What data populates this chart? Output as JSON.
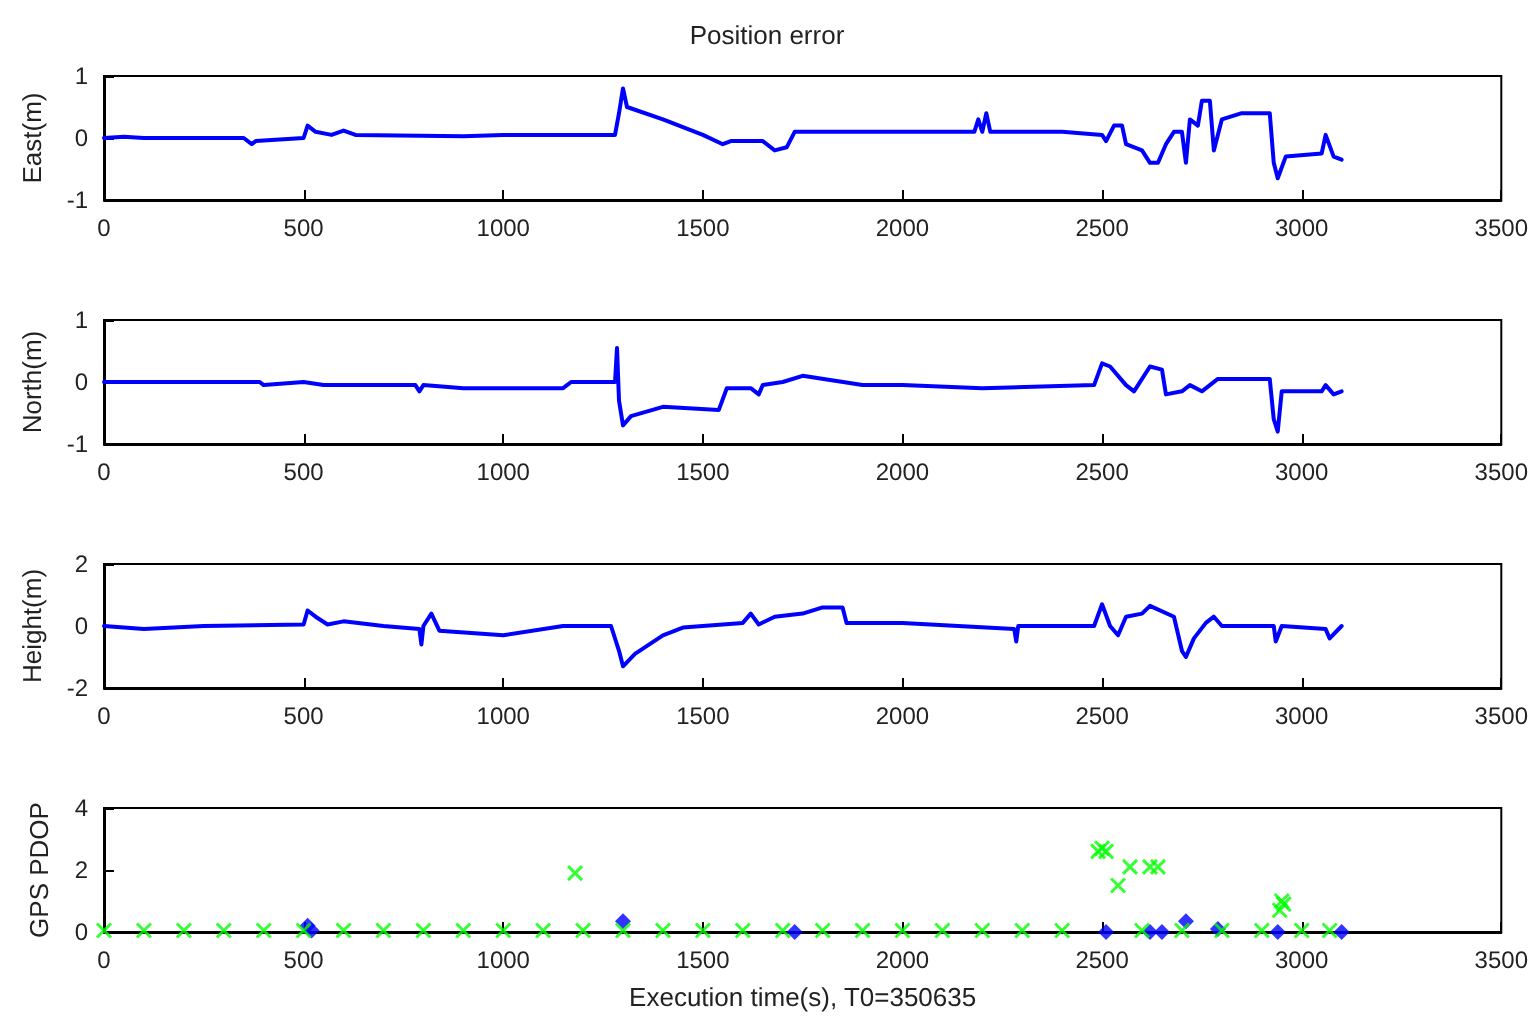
{
  "chart_data": [
    {
      "type": "line",
      "title": "Position error",
      "ylabel": "East(m)",
      "xlim": [
        0,
        3500
      ],
      "xticks": [
        0,
        500,
        1000,
        1500,
        2000,
        2500,
        3000,
        3500
      ],
      "ylim": [
        -1,
        1
      ],
      "yticks": [
        -1,
        0,
        1
      ],
      "grid": false,
      "marker": "none",
      "line_style": "solid",
      "series": [
        {
          "color": "#0000ff",
          "x": [
            0,
            50,
            100,
            350,
            370,
            380,
            500,
            510,
            530,
            570,
            600,
            630,
            900,
            1000,
            1280,
            1290,
            1300,
            1310,
            1400,
            1500,
            1550,
            1570,
            1650,
            1680,
            1710,
            1730,
            1800,
            2000,
            2180,
            2190,
            2200,
            2210,
            2220,
            2400,
            2500,
            2510,
            2530,
            2550,
            2560,
            2600,
            2620,
            2640,
            2660,
            2680,
            2700,
            2710,
            2720,
            2740,
            2750,
            2770,
            2780,
            2800,
            2850,
            2920,
            2930,
            2940,
            2960,
            3050,
            3060,
            3080,
            3100
          ],
          "values": [
            0,
            0.02,
            0,
            0,
            -0.1,
            -0.05,
            0,
            0.2,
            0.1,
            0.05,
            0.12,
            0.05,
            0.03,
            0.05,
            0.05,
            0.4,
            0.8,
            0.5,
            0.3,
            0.05,
            -0.1,
            -0.05,
            -0.05,
            -0.2,
            -0.15,
            0.1,
            0.1,
            0.1,
            0.1,
            0.3,
            0.1,
            0.4,
            0.1,
            0.1,
            0.05,
            -0.05,
            0.2,
            0.2,
            -0.1,
            -0.2,
            -0.4,
            -0.4,
            -0.1,
            0.1,
            0.1,
            -0.4,
            0.3,
            0.2,
            0.6,
            0.6,
            -0.2,
            0.3,
            0.4,
            0.4,
            -0.4,
            -0.65,
            -0.3,
            -0.25,
            0.05,
            -0.3,
            -0.35
          ]
        }
      ]
    },
    {
      "type": "line",
      "ylabel": "North(m)",
      "xlim": [
        0,
        3500
      ],
      "xticks": [
        0,
        500,
        1000,
        1500,
        2000,
        2500,
        3000,
        3500
      ],
      "ylim": [
        -1,
        1
      ],
      "yticks": [
        -1,
        0,
        1
      ],
      "grid": false,
      "marker": "none",
      "line_style": "solid",
      "series": [
        {
          "color": "#0000ff",
          "x": [
            0,
            390,
            400,
            500,
            550,
            780,
            790,
            800,
            900,
            1000,
            1150,
            1170,
            1280,
            1285,
            1290,
            1300,
            1320,
            1400,
            1540,
            1560,
            1620,
            1640,
            1650,
            1700,
            1750,
            1900,
            2000,
            2200,
            2480,
            2500,
            2520,
            2560,
            2580,
            2620,
            2650,
            2660,
            2700,
            2720,
            2750,
            2790,
            2920,
            2930,
            2940,
            2950,
            3050,
            3060,
            3080,
            3100
          ],
          "values": [
            0,
            0,
            -0.05,
            0,
            -0.05,
            -0.05,
            -0.15,
            -0.05,
            -0.1,
            -0.1,
            -0.1,
            0,
            0,
            0.55,
            -0.3,
            -0.7,
            -0.55,
            -0.4,
            -0.45,
            -0.1,
            -0.1,
            -0.2,
            -0.05,
            0,
            0.1,
            -0.05,
            -0.05,
            -0.1,
            -0.05,
            0.3,
            0.25,
            -0.05,
            -0.15,
            0.25,
            0.2,
            -0.2,
            -0.15,
            -0.05,
            -0.15,
            0.05,
            0.05,
            -0.6,
            -0.8,
            -0.15,
            -0.15,
            -0.05,
            -0.2,
            -0.15
          ]
        }
      ]
    },
    {
      "type": "line",
      "ylabel": "Height(m)",
      "xlim": [
        0,
        3500
      ],
      "xticks": [
        0,
        500,
        1000,
        1500,
        2000,
        2500,
        3000,
        3500
      ],
      "ylim": [
        -2,
        2
      ],
      "yticks": [
        -2,
        0,
        2
      ],
      "grid": false,
      "marker": "none",
      "line_style": "solid",
      "series": [
        {
          "color": "#0000ff",
          "x": [
            0,
            100,
            250,
            500,
            510,
            530,
            560,
            600,
            700,
            790,
            795,
            800,
            820,
            840,
            1000,
            1150,
            1270,
            1290,
            1300,
            1330,
            1400,
            1450,
            1600,
            1620,
            1640,
            1680,
            1750,
            1800,
            1850,
            1860,
            2000,
            2280,
            2285,
            2290,
            2480,
            2500,
            2520,
            2540,
            2560,
            2600,
            2620,
            2680,
            2700,
            2710,
            2730,
            2760,
            2780,
            2800,
            2930,
            2935,
            2950,
            3060,
            3070,
            3100
          ],
          "values": [
            0,
            -0.1,
            0,
            0.05,
            0.5,
            0.3,
            0.05,
            0.15,
            0,
            -0.1,
            -0.6,
            0,
            0.4,
            -0.15,
            -0.3,
            0,
            0,
            -0.8,
            -1.3,
            -0.9,
            -0.3,
            -0.05,
            0.1,
            0.4,
            0.05,
            0.3,
            0.4,
            0.6,
            0.6,
            0.1,
            0.1,
            -0.1,
            -0.5,
            0,
            0,
            0.7,
            0,
            -0.3,
            0.3,
            0.4,
            0.65,
            0.3,
            -0.8,
            -1,
            -0.4,
            0.1,
            0.3,
            0,
            0,
            -0.5,
            0,
            -0.1,
            -0.4,
            0
          ]
        }
      ]
    },
    {
      "type": "scatter",
      "ylabel": "GPS PDOP",
      "xlabel": "Execution time(s), T0=350635",
      "xlim": [
        0,
        3500
      ],
      "xticks": [
        0,
        500,
        1000,
        1500,
        2000,
        2500,
        3000,
        3500
      ],
      "ylim": [
        0,
        4
      ],
      "yticks": [
        0,
        2,
        4
      ],
      "grid": false,
      "series": [
        {
          "color": "#0000ff",
          "marker": "diamond",
          "x": [
            510,
            520,
            1300,
            1730,
            2510,
            2620,
            2650,
            2710,
            2790,
            2940,
            3100
          ],
          "values": [
            0.2,
            0.05,
            0.35,
            0,
            0,
            0,
            0,
            0.35,
            0.1,
            0,
            0
          ]
        },
        {
          "color": "#00ff00",
          "marker": "cross",
          "x": [
            0,
            100,
            200,
            300,
            400,
            500,
            600,
            700,
            800,
            900,
            1000,
            1100,
            1180,
            1200,
            1300,
            1400,
            1500,
            1600,
            1700,
            1800,
            1900,
            2000,
            2100,
            2200,
            2300,
            2400,
            2490,
            2500,
            2510,
            2540,
            2570,
            2600,
            2620,
            2640,
            2700,
            2800,
            2900,
            2945,
            2950,
            2955,
            3000,
            3070
          ],
          "values": [
            0.05,
            0.05,
            0.05,
            0.05,
            0.05,
            0.05,
            0.05,
            0.05,
            0.05,
            0.05,
            0.05,
            0.05,
            1.9,
            0.05,
            0.05,
            0.05,
            0.05,
            0.05,
            0.05,
            0.05,
            0.05,
            0.05,
            0.05,
            0.05,
            0.05,
            0.05,
            2.6,
            2.7,
            2.6,
            1.5,
            2.1,
            0.05,
            2.1,
            2.1,
            0.05,
            0.05,
            0.05,
            0.7,
            1,
            0.9,
            0.05,
            0.05
          ]
        }
      ]
    }
  ]
}
